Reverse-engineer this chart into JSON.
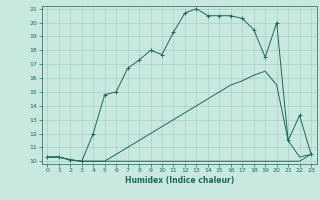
{
  "xlabel": "Humidex (Indice chaleur)",
  "ylabel": "",
  "bg_color": "#c8e8e0",
  "line_color": "#1a6b5a",
  "grid_color": "#a8cfc8",
  "xlim": [
    -0.5,
    23.5
  ],
  "ylim": [
    9.8,
    21.2
  ],
  "xticks": [
    0,
    1,
    2,
    3,
    4,
    5,
    6,
    7,
    8,
    9,
    10,
    11,
    12,
    13,
    14,
    15,
    16,
    17,
    18,
    19,
    20,
    21,
    22,
    23
  ],
  "yticks": [
    10,
    11,
    12,
    13,
    14,
    15,
    16,
    17,
    18,
    19,
    20,
    21
  ],
  "line1_x": [
    0,
    1,
    2,
    3,
    4,
    5,
    6,
    7,
    8,
    9,
    10,
    11,
    12,
    13,
    14,
    15,
    16,
    17,
    18,
    19,
    20,
    21,
    22,
    23
  ],
  "line1_y": [
    10.3,
    10.3,
    10.1,
    10.0,
    10.0,
    10.0,
    10.0,
    10.0,
    10.0,
    10.0,
    10.0,
    10.0,
    10.0,
    10.0,
    10.0,
    10.0,
    10.0,
    10.0,
    10.0,
    10.0,
    10.0,
    10.0,
    10.0,
    10.5
  ],
  "line2_x": [
    0,
    1,
    2,
    3,
    4,
    5,
    6,
    7,
    8,
    9,
    10,
    11,
    12,
    13,
    14,
    15,
    16,
    17,
    18,
    19,
    20,
    21,
    22,
    23
  ],
  "line2_y": [
    10.3,
    10.3,
    10.1,
    10.0,
    12.0,
    14.8,
    15.0,
    16.7,
    17.3,
    18.0,
    17.7,
    19.3,
    20.7,
    21.0,
    20.5,
    20.5,
    20.5,
    20.3,
    19.5,
    17.5,
    20.0,
    11.5,
    13.3,
    10.5
  ],
  "line3_x": [
    0,
    1,
    2,
    3,
    4,
    5,
    6,
    7,
    8,
    9,
    10,
    11,
    12,
    13,
    14,
    15,
    16,
    17,
    18,
    19,
    20,
    21,
    22,
    23
  ],
  "line3_y": [
    10.3,
    10.3,
    10.1,
    10.0,
    10.0,
    10.0,
    10.5,
    11.0,
    11.5,
    12.0,
    12.5,
    13.0,
    13.5,
    14.0,
    14.5,
    15.0,
    15.5,
    15.8,
    16.2,
    16.5,
    15.5,
    11.5,
    10.3,
    10.5
  ]
}
